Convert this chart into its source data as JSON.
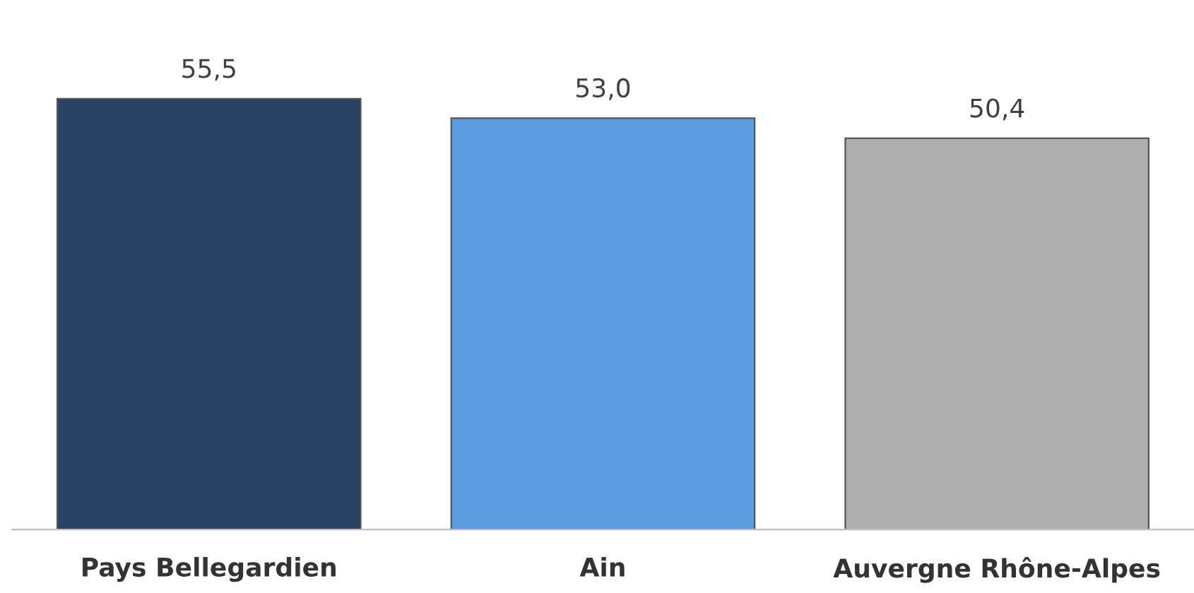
{
  "chart_data": {
    "type": "bar",
    "categories": [
      "Pays Bellegardien",
      "Ain",
      "Auvergne Rhône-Alpes"
    ],
    "values": [
      55.5,
      53.0,
      50.4
    ],
    "colors": [
      "#2b4465",
      "#5b9be0",
      "#afafaf"
    ],
    "value_labels": [
      "55,5",
      "53,0",
      "50,4"
    ],
    "grid": false,
    "legend": false
  }
}
